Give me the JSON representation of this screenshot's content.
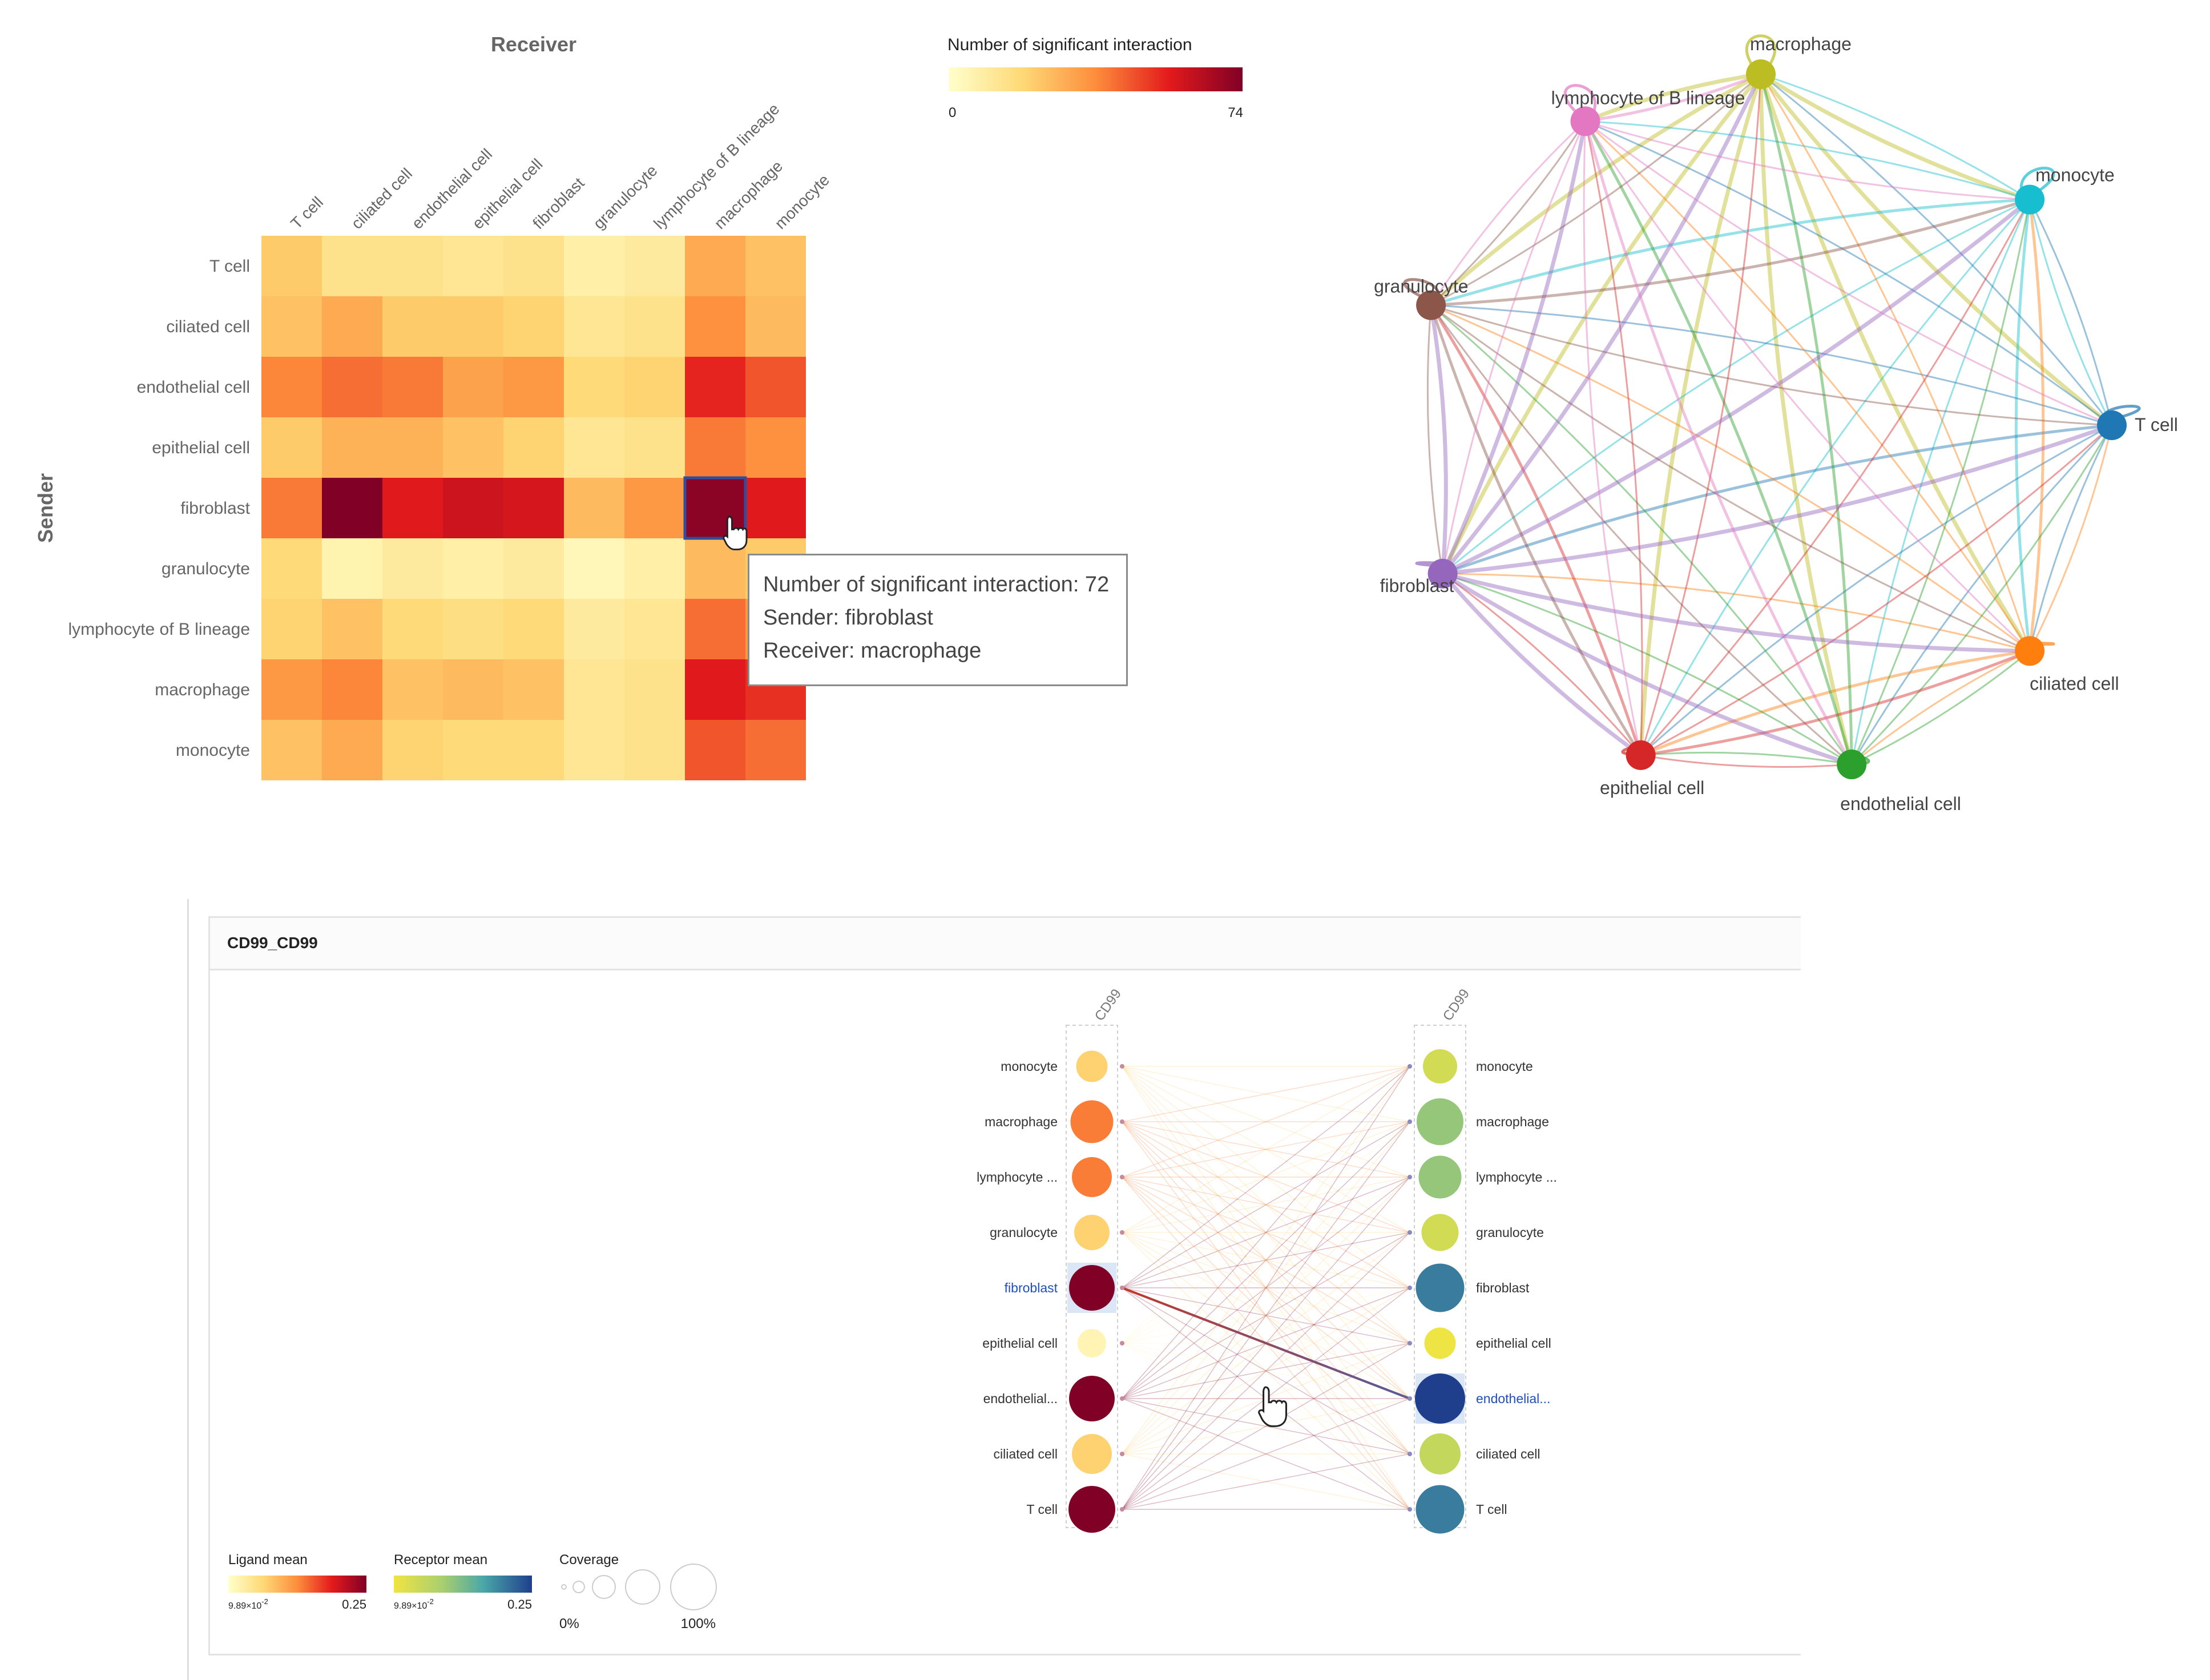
{
  "heatmap": {
    "receiver_title": "Receiver",
    "sender_title": "Sender",
    "legend_title": "Number of significant interaction",
    "legend_min": "0",
    "legend_max": "74",
    "selected_cell": {
      "row": 4,
      "col": 7
    }
  },
  "tooltip": {
    "line1": "Number of significant interaction: 72",
    "line2": "Sender: fibroblast",
    "line3": "Receiver: macrophage"
  },
  "chart_data": [
    {
      "type": "heatmap",
      "x_categories": [
        "T cell",
        "ciliated cell",
        "endothelial cell",
        "epithelial cell",
        "fibroblast",
        "granulocyte",
        "lymphocyte of B lineage",
        "macrophage",
        "monocyte"
      ],
      "y_categories": [
        "T cell",
        "ciliated cell",
        "endothelial cell",
        "epithelial cell",
        "fibroblast",
        "granulocyte",
        "lymphocyte of B lineage",
        "macrophage",
        "monocyte"
      ],
      "xlabel": "Receiver",
      "ylabel": "Sender",
      "value_range": [
        0,
        74
      ],
      "values": [
        [
          22,
          14,
          14,
          12,
          14,
          8,
          10,
          30,
          24
        ],
        [
          24,
          30,
          22,
          22,
          20,
          12,
          14,
          36,
          26
        ],
        [
          38,
          42,
          40,
          32,
          34,
          18,
          20,
          54,
          46
        ],
        [
          22,
          28,
          28,
          24,
          20,
          12,
          14,
          40,
          36
        ],
        [
          40,
          74,
          56,
          60,
          58,
          26,
          34,
          72,
          56
        ],
        [
          18,
          6,
          10,
          8,
          10,
          4,
          8,
          26,
          22
        ],
        [
          20,
          24,
          18,
          16,
          18,
          10,
          12,
          42,
          34
        ],
        [
          34,
          38,
          24,
          26,
          24,
          12,
          14,
          56,
          52
        ],
        [
          24,
          30,
          20,
          18,
          18,
          12,
          14,
          46,
          42
        ]
      ]
    },
    {
      "type": "network",
      "nodes": [
        {
          "name": "macrophage",
          "color": "#bcbd22"
        },
        {
          "name": "monocyte",
          "color": "#17becf"
        },
        {
          "name": "T cell",
          "color": "#1f77b4"
        },
        {
          "name": "ciliated cell",
          "color": "#ff7f0e"
        },
        {
          "name": "endothelial cell",
          "color": "#2ca02c"
        },
        {
          "name": "epithelial cell",
          "color": "#d62728"
        },
        {
          "name": "fibroblast",
          "color": "#9467bd"
        },
        {
          "name": "granulocyte",
          "color": "#8c564b"
        },
        {
          "name": "lymphocyte of B lineage",
          "color": "#e377c2"
        }
      ]
    },
    {
      "type": "bipartite",
      "title": "CD99_CD99",
      "ligand_header": "CD99",
      "receptor_header": "CD99",
      "ligand_rows": [
        {
          "label": "monocyte",
          "mean": 0.14,
          "coverage": 0.35,
          "highlight": false
        },
        {
          "label": "macrophage",
          "mean": 0.18,
          "coverage": 0.55,
          "highlight": false
        },
        {
          "label": "lymphocyte ...",
          "mean": 0.18,
          "coverage": 0.5,
          "highlight": false
        },
        {
          "label": "granulocyte",
          "mean": 0.14,
          "coverage": 0.42,
          "highlight": false
        },
        {
          "label": "fibroblast",
          "mean": 0.25,
          "coverage": 0.6,
          "highlight": true
        },
        {
          "label": "epithelial cell",
          "mean": 0.11,
          "coverage": 0.3,
          "highlight": false
        },
        {
          "label": "endothelial...",
          "mean": 0.25,
          "coverage": 0.6,
          "highlight": false
        },
        {
          "label": "ciliated cell",
          "mean": 0.14,
          "coverage": 0.5,
          "highlight": false
        },
        {
          "label": "T cell",
          "mean": 0.25,
          "coverage": 0.62,
          "highlight": false
        }
      ],
      "receptor_rows": [
        {
          "label": "monocyte",
          "mean": 0.12,
          "coverage": 0.4,
          "highlight": false
        },
        {
          "label": "macrophage",
          "mean": 0.16,
          "coverage": 0.62,
          "highlight": false
        },
        {
          "label": "lymphocyte ...",
          "mean": 0.16,
          "coverage": 0.55,
          "highlight": false
        },
        {
          "label": "granulocyte",
          "mean": 0.12,
          "coverage": 0.45,
          "highlight": false
        },
        {
          "label": "fibroblast",
          "mean": 0.22,
          "coverage": 0.65,
          "highlight": false
        },
        {
          "label": "epithelial cell",
          "mean": 0.1,
          "coverage": 0.35,
          "highlight": false
        },
        {
          "label": "endothelial...",
          "mean": 0.25,
          "coverage": 0.68,
          "highlight": true
        },
        {
          "label": "ciliated cell",
          "mean": 0.13,
          "coverage": 0.52,
          "highlight": false
        },
        {
          "label": "T cell",
          "mean": 0.22,
          "coverage": 0.65,
          "highlight": false
        }
      ],
      "highlight_link": {
        "from": 4,
        "to": 6
      },
      "legend": {
        "ligand_title": "Ligand mean",
        "receptor_title": "Receptor mean",
        "coverage_title": "Coverage",
        "min_base": "9.89×10",
        "min_exp": "-2",
        "max": "0.25",
        "coverage_min": "0%",
        "coverage_max": "100%"
      }
    }
  ],
  "colors": {
    "heat_low": "#ffffcc",
    "heat_high": "#800026",
    "receptor_low": "#f0e442",
    "receptor_high": "#2b3f6b",
    "highlight_blue": "#1f4fbf"
  }
}
